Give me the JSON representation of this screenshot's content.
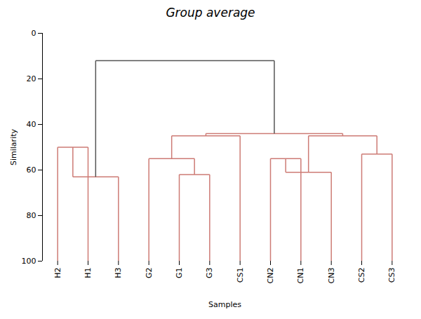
{
  "chart_data": {
    "type": "dendrogram",
    "title": "Group average",
    "xlabel": "Samples",
    "ylabel": "Similarity",
    "categories": [
      "H2",
      "H1",
      "H3",
      "G2",
      "G1",
      "G3",
      "CS1",
      "CN2",
      "CN1",
      "CN3",
      "CS2",
      "CS3"
    ],
    "leaf_height": 100,
    "merges": [
      {
        "children": [
          0,
          1
        ],
        "height": 50
      },
      {
        "children": [
          12,
          2
        ],
        "height": 63
      },
      {
        "children": [
          4,
          5
        ],
        "height": 62
      },
      {
        "children": [
          3,
          14
        ],
        "height": 55
      },
      {
        "children": [
          15,
          6
        ],
        "height": 45
      },
      {
        "children": [
          7,
          8
        ],
        "height": 55
      },
      {
        "children": [
          17,
          9
        ],
        "height": 61
      },
      {
        "children": [
          10,
          11
        ],
        "height": 53
      },
      {
        "children": [
          18,
          19
        ],
        "height": 45
      },
      {
        "children": [
          16,
          20
        ],
        "height": 44
      },
      {
        "children": [
          13,
          21
        ],
        "height": 12
      }
    ],
    "colors": [
      "#cd7b75",
      "#cd7b75",
      "#cd7b75",
      "#cd7b75",
      "#cd7b75",
      "#cd7b75",
      "#cd7b75",
      "#cd7b75",
      "#cd7b75",
      "#cd7b75",
      "#555555"
    ],
    "ylim": [
      100,
      0
    ],
    "yticks": [
      0,
      20,
      40,
      60,
      80,
      100
    ]
  }
}
